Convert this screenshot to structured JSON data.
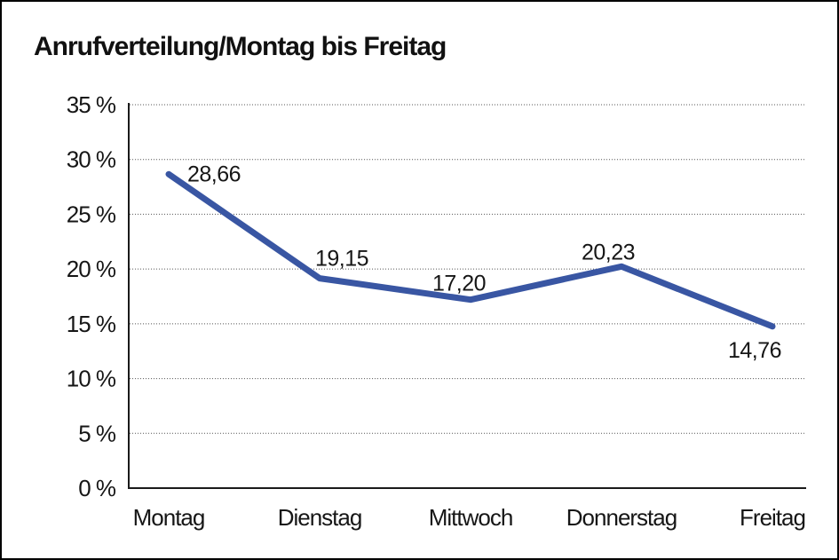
{
  "window": {
    "background": "#ffffff",
    "border_color": "#000000"
  },
  "title": "Anrufverteilung/Montag bis Freitag",
  "chart_data": {
    "type": "line",
    "title": "Anrufverteilung/Montag bis Freitag",
    "categories": [
      "Montag",
      "Dienstag",
      "Mittwoch",
      "Donnerstag",
      "Freitag"
    ],
    "values": [
      28.66,
      19.15,
      17.2,
      20.23,
      14.76
    ],
    "value_labels": [
      "28,66",
      "19,15",
      "17,20",
      "20,23",
      "14,76"
    ],
    "xlabel": "",
    "ylabel": "",
    "ylim": [
      0,
      35
    ],
    "ytick_step": 5,
    "ytick_suffix": " %",
    "ytick_labels": [
      "0 %",
      "5 %",
      "10 %",
      "15 %",
      "20 %",
      "25 %",
      "30 %",
      "35 %"
    ],
    "grid": "horizontal-dotted",
    "legend_position": "none",
    "series_name": "Anrufverteilung"
  },
  "colors": {
    "line": "#3956a3",
    "grid": "#555555",
    "axis": "#1a1a1a",
    "text": "#161616",
    "background": "#ffffff",
    "border": "#000000"
  }
}
